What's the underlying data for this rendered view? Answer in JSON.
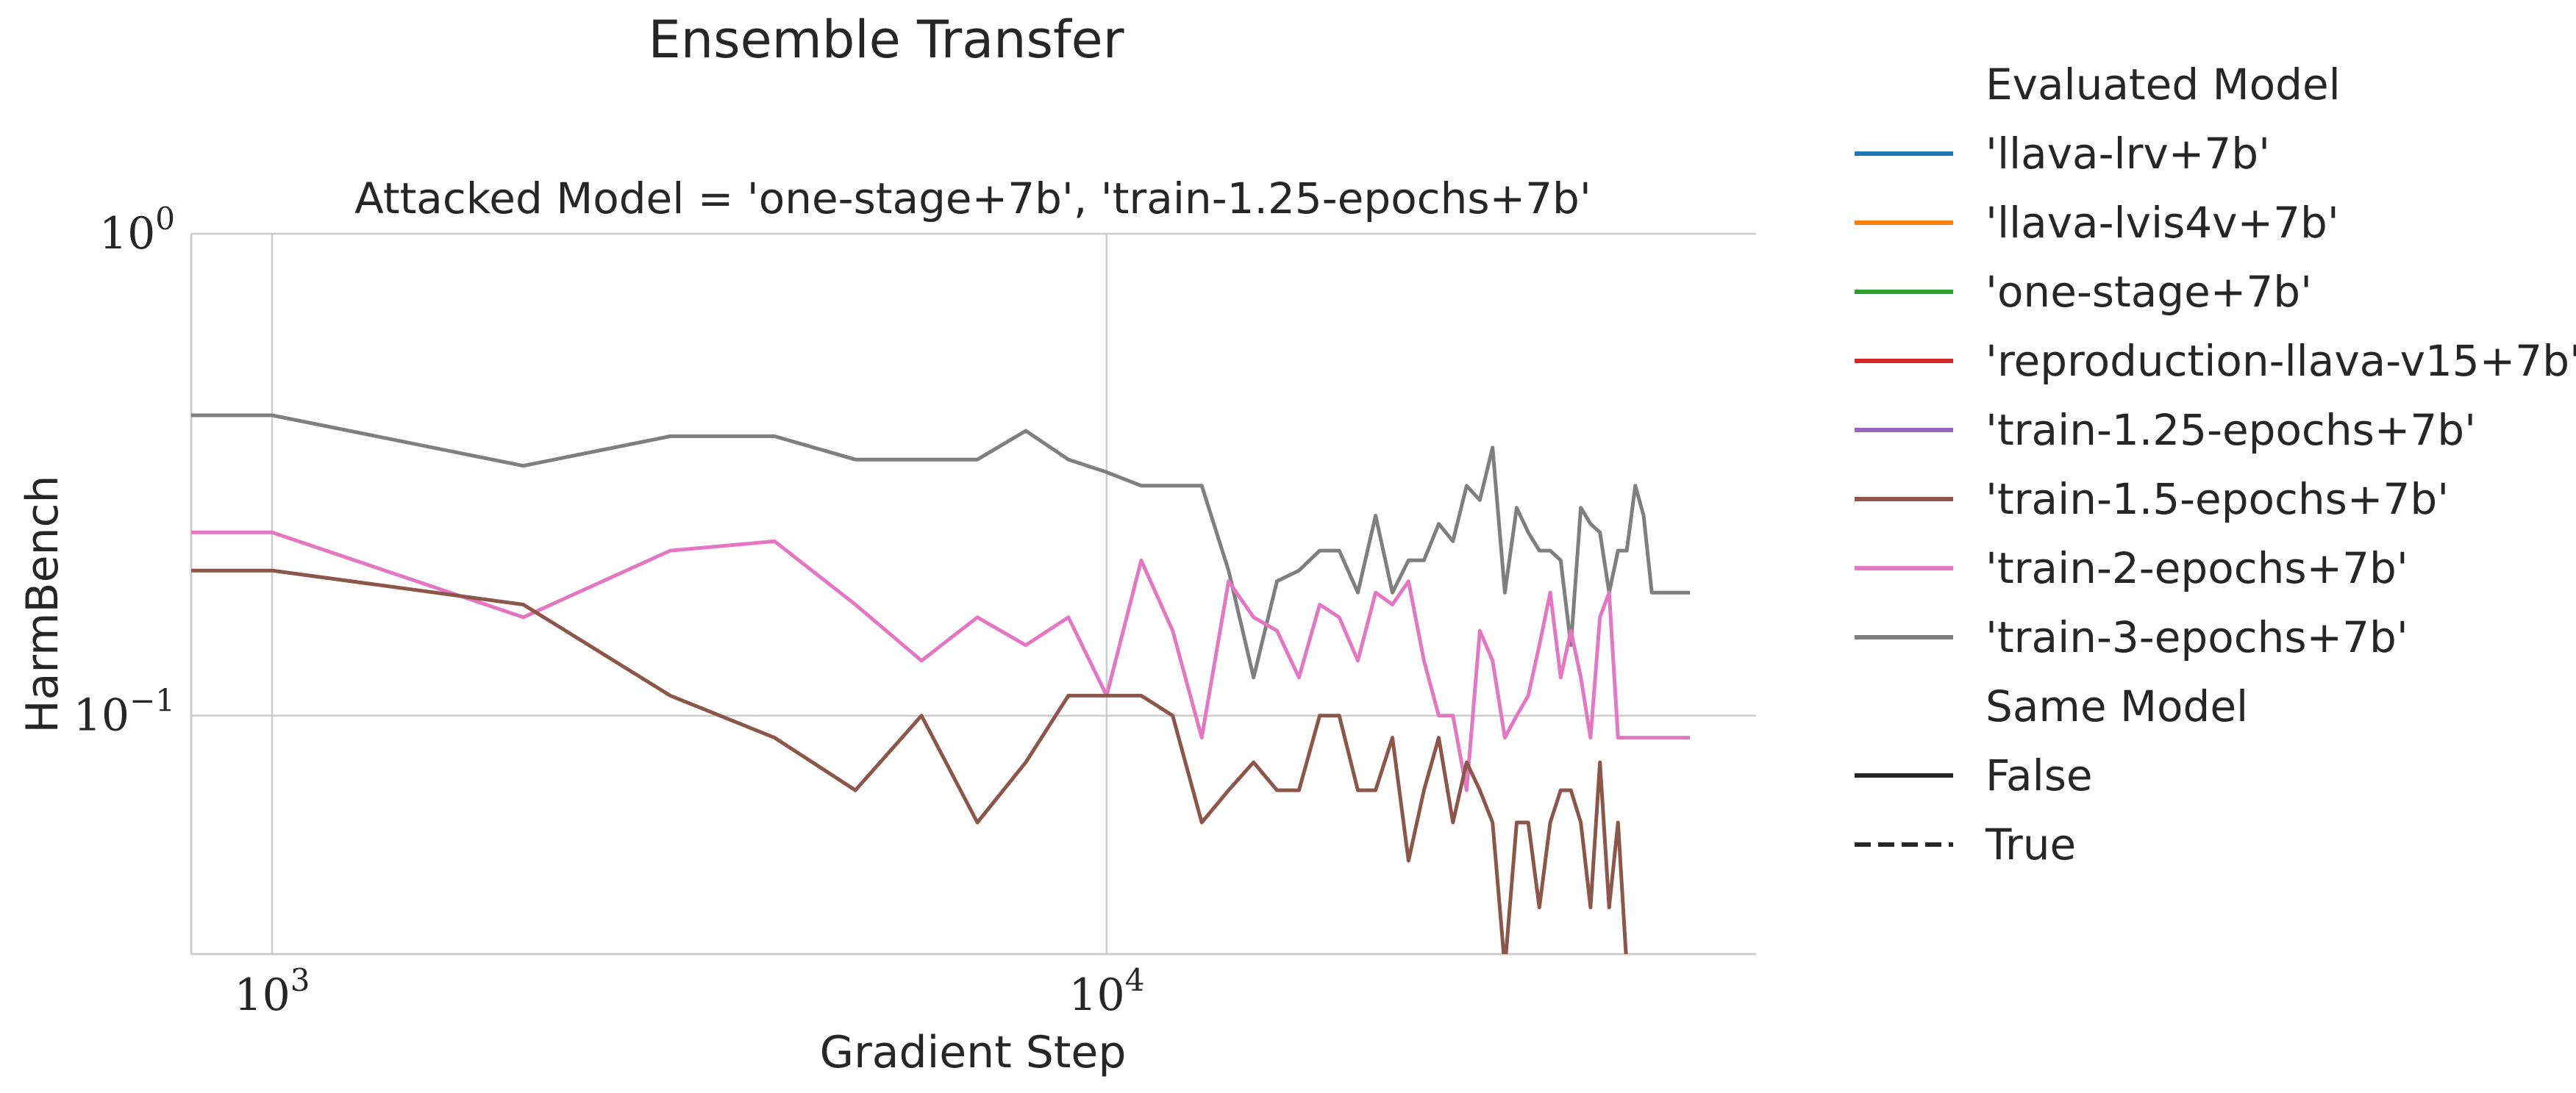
{
  "suptitle": "Ensemble Transfer",
  "chart_data": {
    "type": "line",
    "title": "Attacked Model = 'one-stage+7b', 'train-1.25-epochs+7b'",
    "xlabel": "Gradient Step",
    "ylabel": "HarmBench",
    "xscale": "log",
    "yscale": "log",
    "xlim": [
      800,
      60000
    ],
    "ylim": [
      0.032,
      1.0
    ],
    "x_ticks": [
      {
        "value": 1000,
        "base": "10",
        "exp": "3"
      },
      {
        "value": 10000,
        "base": "10",
        "exp": "4"
      }
    ],
    "y_ticks": [
      {
        "value": 1.0,
        "base": "10",
        "exp": "0"
      },
      {
        "value": 0.1,
        "base": "10",
        "exp": "−1"
      }
    ],
    "grid": true,
    "legend_position": "right, outside",
    "legend": {
      "hue_title": "Evaluated Model",
      "hue_entries": [
        {
          "label": "'llava-lrv+7b'",
          "color": "#1f77b4"
        },
        {
          "label": "'llava-lvis4v+7b'",
          "color": "#ff7f0e"
        },
        {
          "label": "'one-stage+7b'",
          "color": "#2ca02c"
        },
        {
          "label": "'reproduction-llava-v15+7b'",
          "color": "#d62728"
        },
        {
          "label": "'train-1.25-epochs+7b'",
          "color": "#9467bd"
        },
        {
          "label": "'train-1.5-epochs+7b'",
          "color": "#8c564b"
        },
        {
          "label": "'train-2-epochs+7b'",
          "color": "#e377c2"
        },
        {
          "label": "'train-3-epochs+7b'",
          "color": "#7f7f7f"
        }
      ],
      "style_title": "Same Model",
      "style_entries": [
        {
          "label": "False",
          "dash": "solid"
        },
        {
          "label": "True",
          "dash": "dashed"
        }
      ]
    },
    "series": [
      {
        "name": "'train-3-epochs+7b'",
        "color": "#7f7f7f",
        "x": [
          800,
          1000,
          2000,
          3000,
          4000,
          5000,
          6000,
          7000,
          8000,
          9000,
          10000,
          11000,
          12000,
          13000,
          14000,
          15000,
          16000,
          17000,
          18000,
          19000,
          20000,
          21000,
          22000,
          23000,
          24000,
          25000,
          26000,
          27000,
          28000,
          29000,
          30000,
          31000,
          32000,
          33000,
          34000,
          35000,
          36000,
          37000,
          38000,
          39000,
          40000,
          41000,
          42000,
          43000,
          44000,
          45000,
          46000,
          47000,
          48000,
          49000,
          50000
        ],
        "y": [
          0.42,
          0.42,
          0.33,
          0.38,
          0.38,
          0.34,
          0.34,
          0.34,
          0.39,
          0.34,
          0.32,
          0.3,
          0.3,
          0.3,
          0.2,
          0.12,
          0.19,
          0.2,
          0.22,
          0.22,
          0.18,
          0.26,
          0.18,
          0.21,
          0.21,
          0.25,
          0.23,
          0.3,
          0.28,
          0.36,
          0.18,
          0.27,
          0.24,
          0.22,
          0.22,
          0.21,
          0.14,
          0.27,
          0.25,
          0.24,
          0.18,
          0.22,
          0.22,
          0.3,
          0.26,
          0.18,
          0.18,
          0.18,
          0.18,
          0.18,
          0.18
        ]
      },
      {
        "name": "'train-2-epochs+7b'",
        "color": "#e377c2",
        "x": [
          800,
          1000,
          2000,
          3000,
          4000,
          5000,
          6000,
          7000,
          8000,
          9000,
          10000,
          11000,
          12000,
          13000,
          14000,
          15000,
          16000,
          17000,
          18000,
          19000,
          20000,
          21000,
          22000,
          23000,
          24000,
          25000,
          26000,
          27000,
          28000,
          29000,
          30000,
          31000,
          32000,
          33000,
          34000,
          35000,
          36000,
          37000,
          38000,
          39000,
          40000,
          41000,
          42000,
          43000,
          44000,
          45000,
          46000,
          47000,
          48000,
          49000,
          50000
        ],
        "y": [
          0.24,
          0.24,
          0.16,
          0.22,
          0.23,
          0.17,
          0.13,
          0.16,
          0.14,
          0.16,
          0.11,
          0.21,
          0.15,
          0.09,
          0.19,
          0.16,
          0.15,
          0.12,
          0.17,
          0.16,
          0.13,
          0.18,
          0.17,
          0.19,
          0.13,
          0.1,
          0.1,
          0.07,
          0.15,
          0.13,
          0.09,
          0.1,
          0.11,
          0.14,
          0.18,
          0.12,
          0.15,
          0.12,
          0.09,
          0.16,
          0.18,
          0.09,
          0.09,
          0.09,
          0.09,
          0.09,
          0.09,
          0.09,
          0.09,
          0.09,
          0.09
        ]
      },
      {
        "name": "'train-1.5-epochs+7b'",
        "color": "#8c564b",
        "x": [
          800,
          1000,
          2000,
          3000,
          4000,
          5000,
          6000,
          7000,
          8000,
          9000,
          10000,
          11000,
          12000,
          13000,
          14000,
          15000,
          16000,
          17000,
          18000,
          19000,
          20000,
          21000,
          22000,
          23000,
          24000,
          25000,
          26000,
          27000,
          28000,
          29000,
          30000,
          31000,
          32000,
          33000,
          34000,
          35000,
          36000,
          37000,
          38000,
          39000,
          40000,
          41000,
          42000,
          43000,
          44000,
          45000,
          46000,
          47000,
          48000,
          49000,
          50000
        ],
        "y": [
          0.2,
          0.2,
          0.17,
          0.11,
          0.09,
          0.07,
          0.1,
          0.06,
          0.08,
          0.11,
          0.11,
          0.11,
          0.1,
          0.06,
          0.07,
          0.08,
          0.07,
          0.07,
          0.1,
          0.1,
          0.07,
          0.07,
          0.09,
          0.05,
          0.07,
          0.09,
          0.06,
          0.08,
          0.07,
          0.06,
          0.03,
          0.06,
          0.06,
          0.04,
          0.06,
          0.07,
          0.07,
          0.06,
          0.04,
          0.08,
          0.04,
          0.06,
          0.03,
          0.03,
          0.03,
          0.03,
          0.03,
          0.03,
          0.03,
          0.03,
          0.03
        ]
      }
    ]
  }
}
